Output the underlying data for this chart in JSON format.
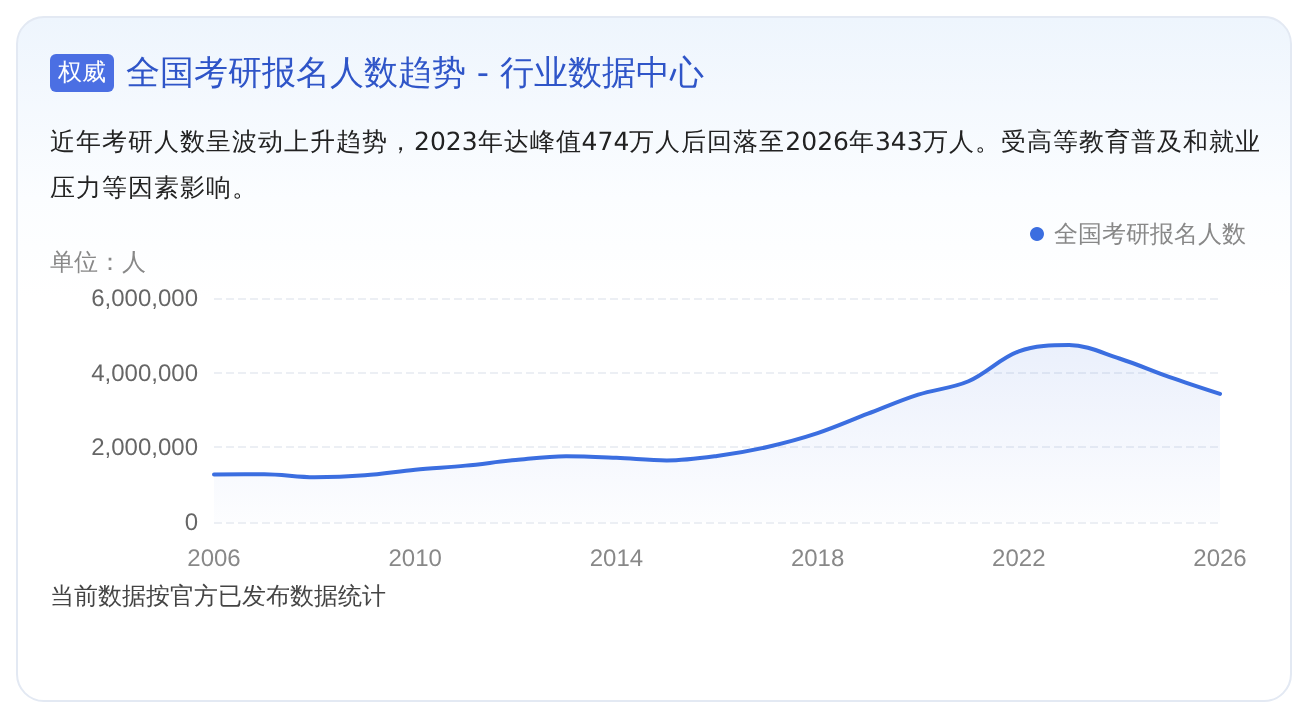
{
  "chart_data": {
    "type": "area",
    "title": "全国考研报名人数趋势 - 行业数据中心",
    "subtitle": "近年考研人数呈波动上升趋势，2023年达峰值474万人后回落至2026年343万人。受高等教育普及和就业压力等因素影响。",
    "ylabel": "单位：人",
    "annotations": [
      "权威",
      "当前数据按官方已发布数据统计"
    ],
    "x": [
      2006,
      2007,
      2008,
      2009,
      2010,
      2011,
      2012,
      2013,
      2014,
      2015,
      2016,
      2017,
      2018,
      2019,
      2020,
      2021,
      2022,
      2023,
      2024,
      2025,
      2026
    ],
    "series": [
      {
        "name": "全国考研报名人数",
        "color": "#3b6ee0",
        "values": [
          1270000,
          1280000,
          1200000,
          1250000,
          1400000,
          1510000,
          1660000,
          1760000,
          1720000,
          1650000,
          1770000,
          2010000,
          2380000,
          2900000,
          3410000,
          3770000,
          4570000,
          4740000,
          4380000,
          3880000,
          3430000
        ]
      }
    ],
    "xlim": [
      2006,
      2026
    ],
    "xticks": [
      2006,
      2010,
      2014,
      2018,
      2022,
      2026
    ],
    "ylim": [
      0,
      6000000
    ],
    "yticks": [
      0,
      {
        "value": 2000000,
        "label": "2,000,000"
      },
      {
        "value": 4000000,
        "label": "4,000,000"
      },
      {
        "value": 6000000,
        "label": "6,000,000"
      }
    ],
    "grid": "y",
    "legend": "top right",
    "marker": "none",
    "line_style": "solid"
  }
}
